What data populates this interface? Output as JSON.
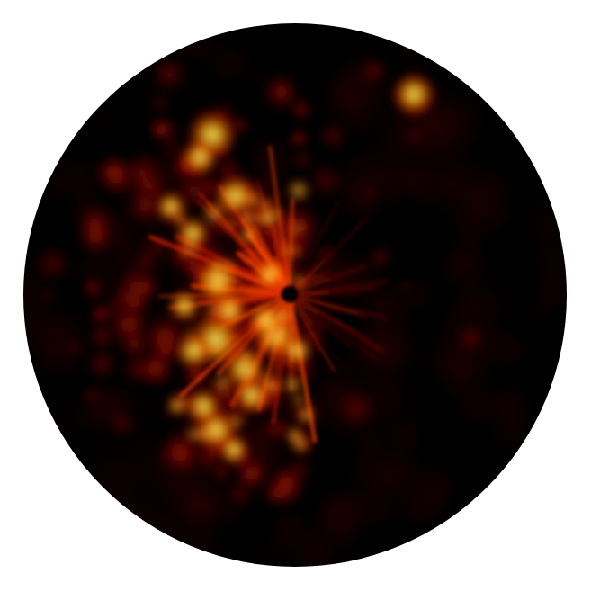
{
  "image": {
    "background_color": "#ffffff",
    "disk_base_color": "#000000",
    "colormap": "hot",
    "colormap_stops": [
      "#000000",
      "#3a0000",
      "#7a0a00",
      "#c21a00",
      "#ff3a00",
      "#ff8a00",
      "#ffd000",
      "#ffff90"
    ]
  }
}
